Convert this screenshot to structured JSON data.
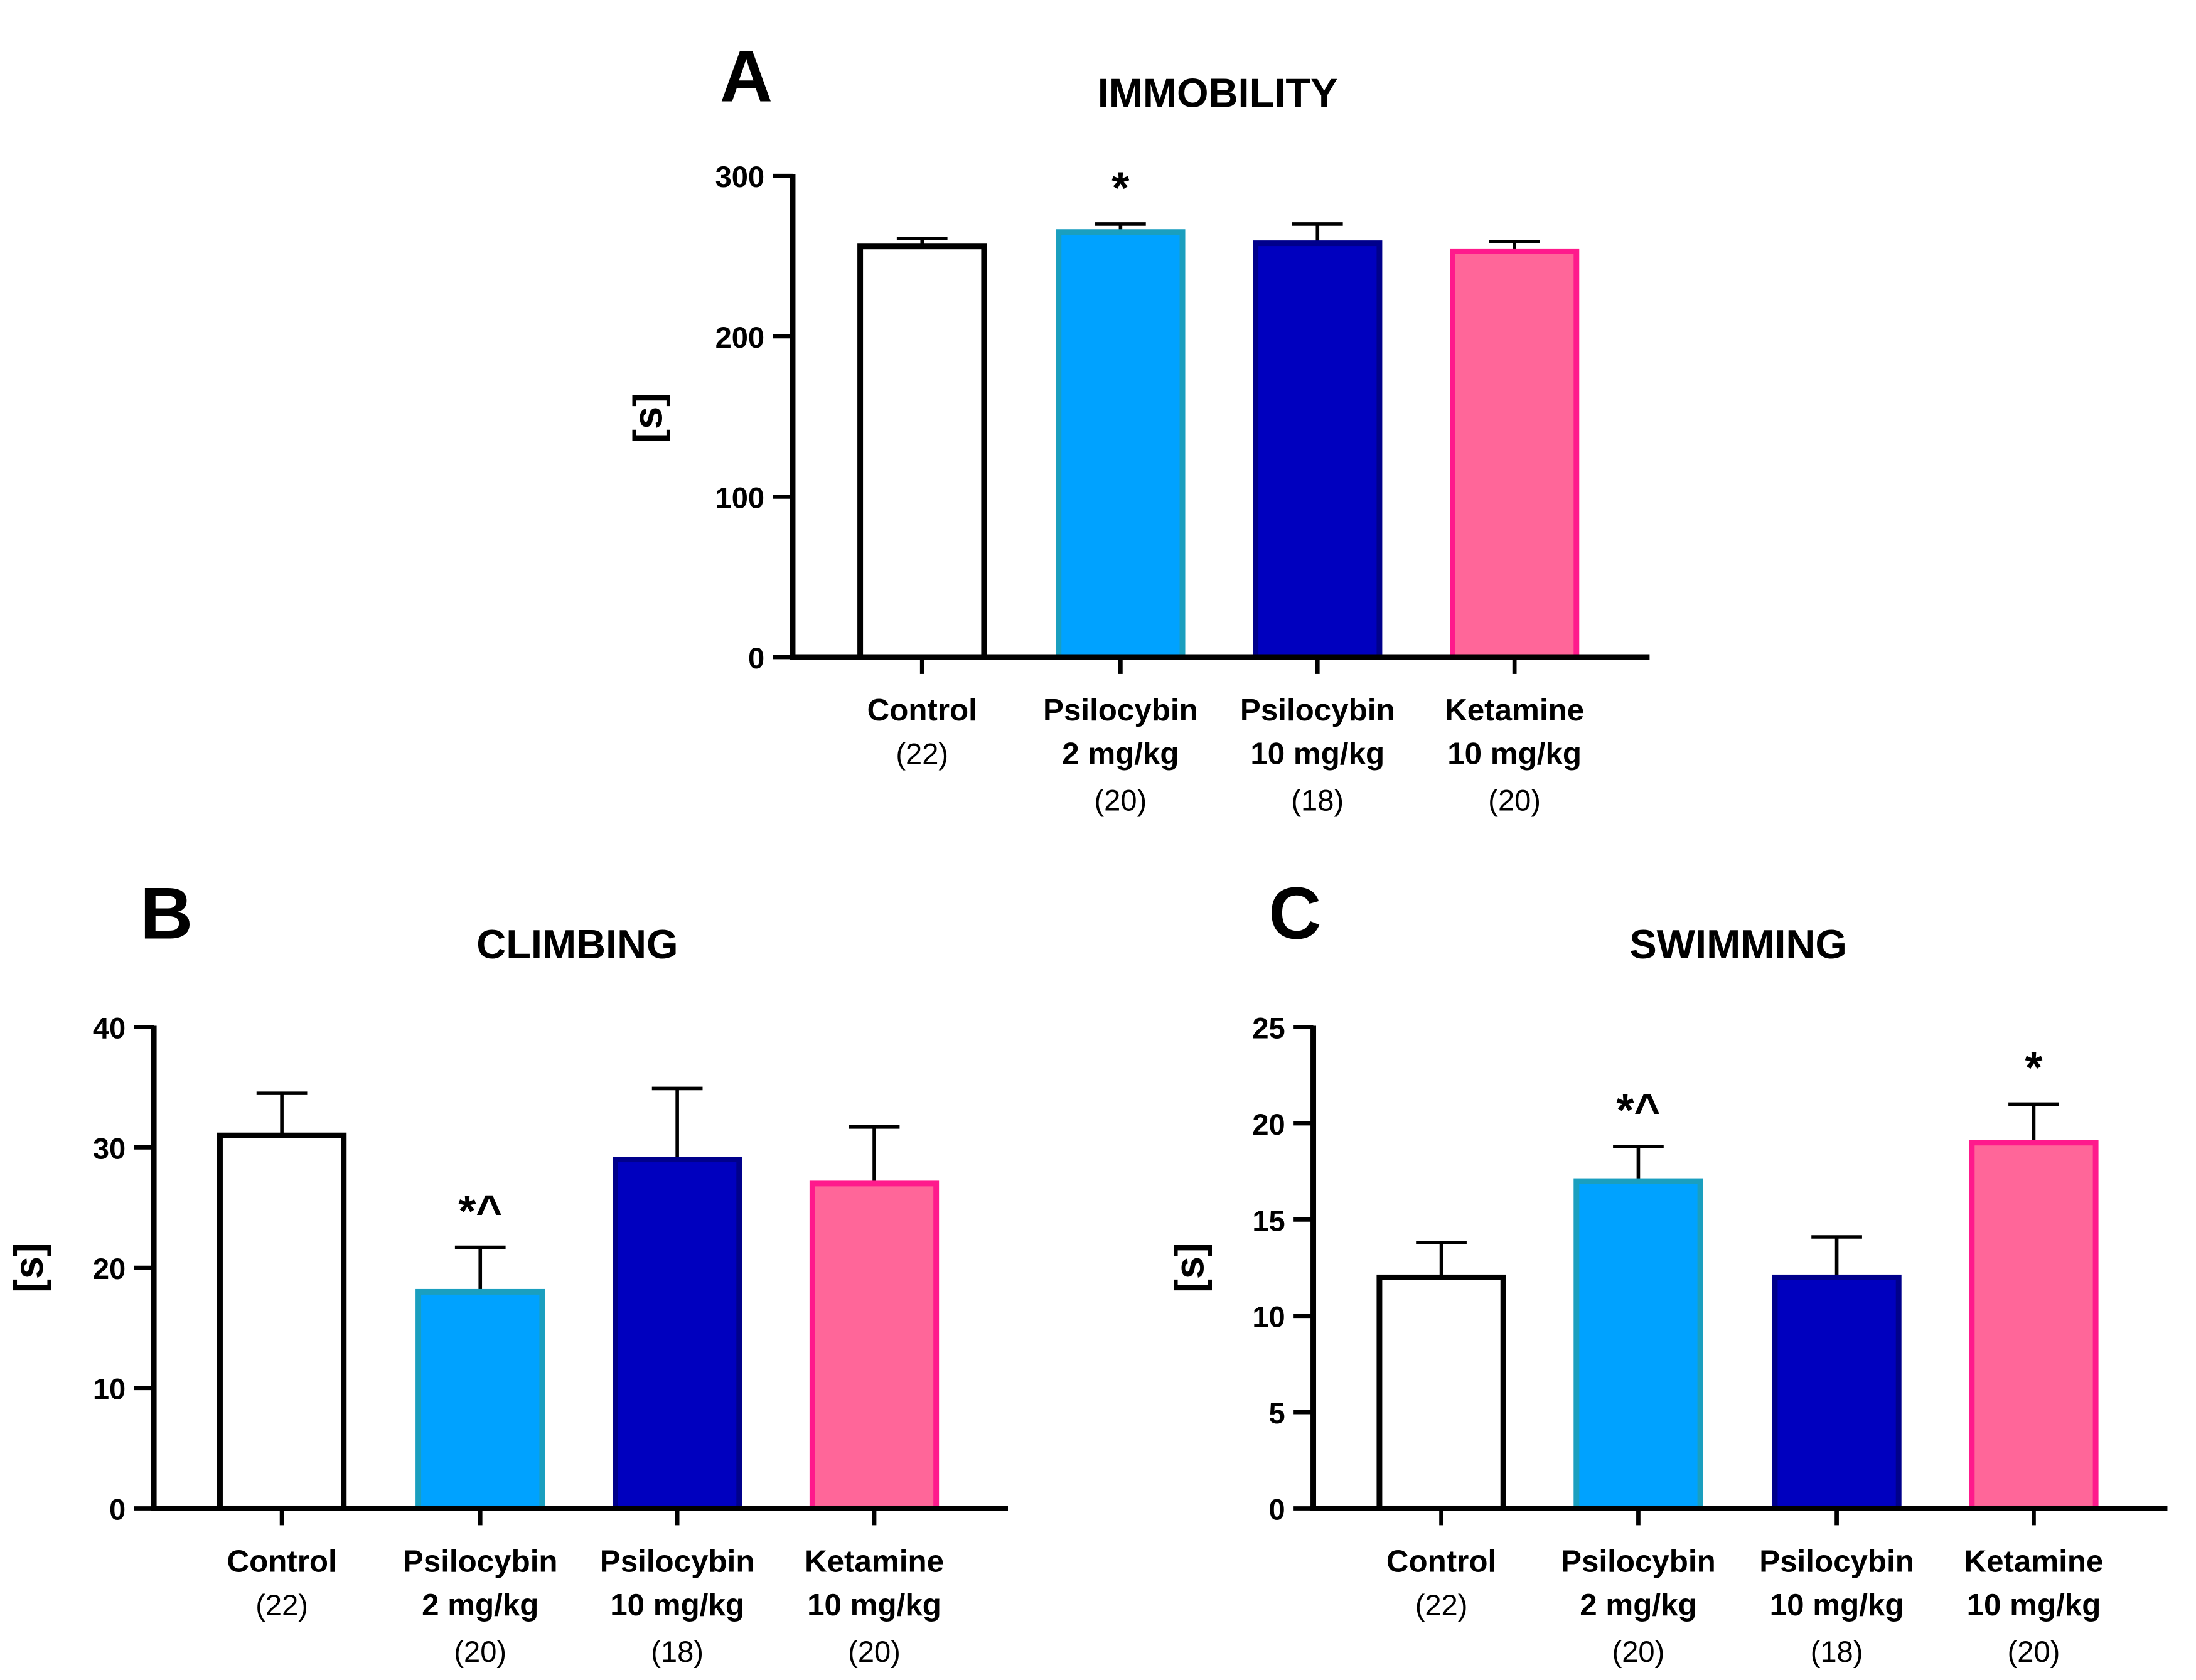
{
  "chart_data": [
    {
      "panel": "A",
      "type": "bar",
      "title": "IMMOBILITY",
      "ylabel": "[s]",
      "ylim": [
        0,
        300
      ],
      "yticks": [
        0,
        100,
        200,
        300
      ],
      "categories": [
        {
          "lines": [
            "Control"
          ],
          "n": "(22)"
        },
        {
          "lines": [
            "Psilocybin",
            "2 mg/kg"
          ],
          "n": "(20)"
        },
        {
          "lines": [
            "Psilocybin",
            "10 mg/kg"
          ],
          "n": "(18)"
        },
        {
          "lines": [
            "Ketamine",
            "10 mg/kg"
          ],
          "n": "(20)"
        }
      ],
      "values": [
        256,
        265,
        258,
        253
      ],
      "error_upper": [
        261,
        270,
        270,
        259
      ],
      "annotations": [
        "",
        "*",
        "",
        ""
      ]
    },
    {
      "panel": "B",
      "type": "bar",
      "title": "CLIMBING",
      "ylabel": "[s]",
      "ylim": [
        0,
        40
      ],
      "yticks": [
        0,
        10,
        20,
        30,
        40
      ],
      "categories": [
        {
          "lines": [
            "Control"
          ],
          "n": "(22)"
        },
        {
          "lines": [
            "Psilocybin",
            "2 mg/kg"
          ],
          "n": "(20)"
        },
        {
          "lines": [
            "Psilocybin",
            "10 mg/kg"
          ],
          "n": "(18)"
        },
        {
          "lines": [
            "Ketamine",
            "10 mg/kg"
          ],
          "n": "(20)"
        }
      ],
      "values": [
        31,
        18,
        29,
        27
      ],
      "error_upper": [
        34.5,
        21.7,
        34.9,
        31.7
      ],
      "annotations": [
        "",
        "*^",
        "",
        ""
      ]
    },
    {
      "panel": "C",
      "type": "bar",
      "title": "SWIMMING",
      "ylabel": "[s]",
      "ylim": [
        0,
        25
      ],
      "yticks": [
        0,
        5,
        10,
        15,
        20,
        25
      ],
      "categories": [
        {
          "lines": [
            "Control"
          ],
          "n": "(22)"
        },
        {
          "lines": [
            "Psilocybin",
            "2 mg/kg"
          ],
          "n": "(20)"
        },
        {
          "lines": [
            "Psilocybin",
            "10 mg/kg"
          ],
          "n": "(18)"
        },
        {
          "lines": [
            "Ketamine",
            "10 mg/kg"
          ],
          "n": "(20)"
        }
      ],
      "values": [
        12,
        17,
        12,
        19
      ],
      "error_upper": [
        13.8,
        18.8,
        14.1,
        21
      ],
      "annotations": [
        "",
        "*^",
        "",
        "*"
      ]
    }
  ],
  "colors": {
    "fills": [
      "#ffffff",
      "#00a2ff",
      "#0000bf",
      "#ff6699"
    ],
    "strokes": [
      "#000000",
      "#1a9fbf",
      "#00008b",
      "#ff1a8c"
    ]
  }
}
